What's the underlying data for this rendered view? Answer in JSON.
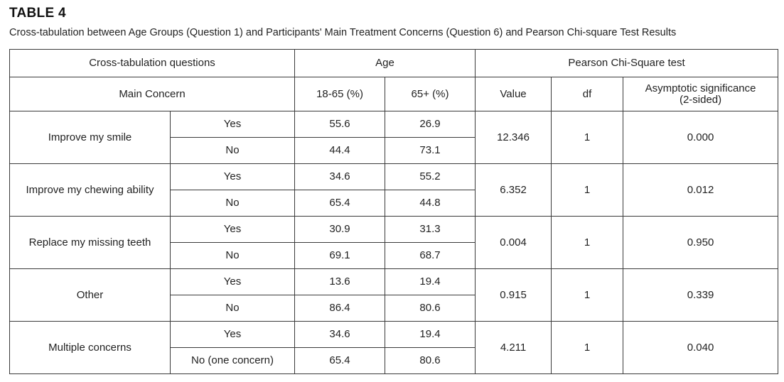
{
  "table_label": "TABLE 4",
  "caption": "Cross-tabulation between Age Groups (Question 1) and Participants' Main Treatment Concerns (Question 6) and Pearson Chi-square Test Results",
  "header": {
    "crosstab_questions": "Cross-tabulation questions",
    "age": "Age",
    "pearson": "Pearson Chi-Square test",
    "main_concern": "Main Concern",
    "age_18_65": "18-65 (%)",
    "age_65_plus": "65+ (%)",
    "value": "Value",
    "df": "df",
    "asym_sig_line1": "Asymptotic significance",
    "asym_sig_line2": "(2-sided)"
  },
  "rows": [
    {
      "concern": "Improve my smile",
      "yes_label": "Yes",
      "yes_18_65": "55.6",
      "yes_65_plus": "26.9",
      "no_label": "No",
      "no_18_65": "44.4",
      "no_65_plus": "73.1",
      "value": "12.346",
      "df": "1",
      "sig": "0.000"
    },
    {
      "concern": "Improve my chewing ability",
      "yes_label": "Yes",
      "yes_18_65": "34.6",
      "yes_65_plus": "55.2",
      "no_label": "No",
      "no_18_65": "65.4",
      "no_65_plus": "44.8",
      "value": "6.352",
      "df": "1",
      "sig": "0.012"
    },
    {
      "concern": "Replace my missing teeth",
      "yes_label": "Yes",
      "yes_18_65": "30.9",
      "yes_65_plus": "31.3",
      "no_label": "No",
      "no_18_65": "69.1",
      "no_65_plus": "68.7",
      "value": "0.004",
      "df": "1",
      "sig": "0.950"
    },
    {
      "concern": "Other",
      "yes_label": "Yes",
      "yes_18_65": "13.6",
      "yes_65_plus": "19.4",
      "no_label": "No",
      "no_18_65": "86.4",
      "no_65_plus": "80.6",
      "value": "0.915",
      "df": "1",
      "sig": "0.339"
    },
    {
      "concern": "Multiple concerns",
      "yes_label": "Yes",
      "yes_18_65": "34.6",
      "yes_65_plus": "19.4",
      "no_label": "No (one concern)",
      "no_18_65": "65.4",
      "no_65_plus": "80.6",
      "value": "4.211",
      "df": "1",
      "sig": "0.040"
    }
  ]
}
